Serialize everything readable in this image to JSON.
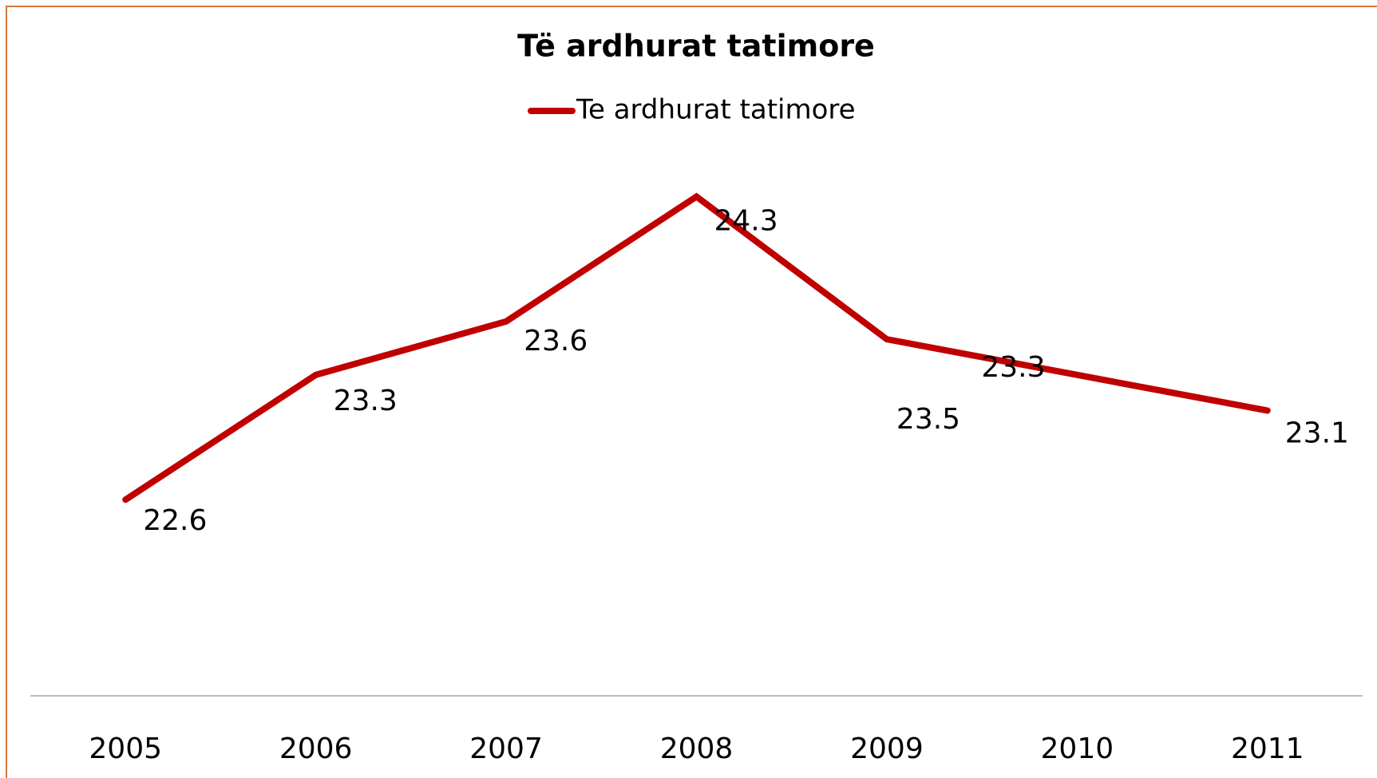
{
  "chart_data": {
    "type": "line",
    "title": "Të ardhurat tatimore",
    "categories": [
      "2005",
      "2006",
      "2007",
      "2008",
      "2009",
      "2010",
      "2011"
    ],
    "series": [
      {
        "name": "Te ardhurat tatimore",
        "color": "#c00000",
        "values": [
          22.6,
          23.3,
          23.6,
          24.3,
          23.5,
          23.3,
          23.1
        ]
      }
    ],
    "ylim": [
      21.5,
      25
    ],
    "legend": "top"
  }
}
